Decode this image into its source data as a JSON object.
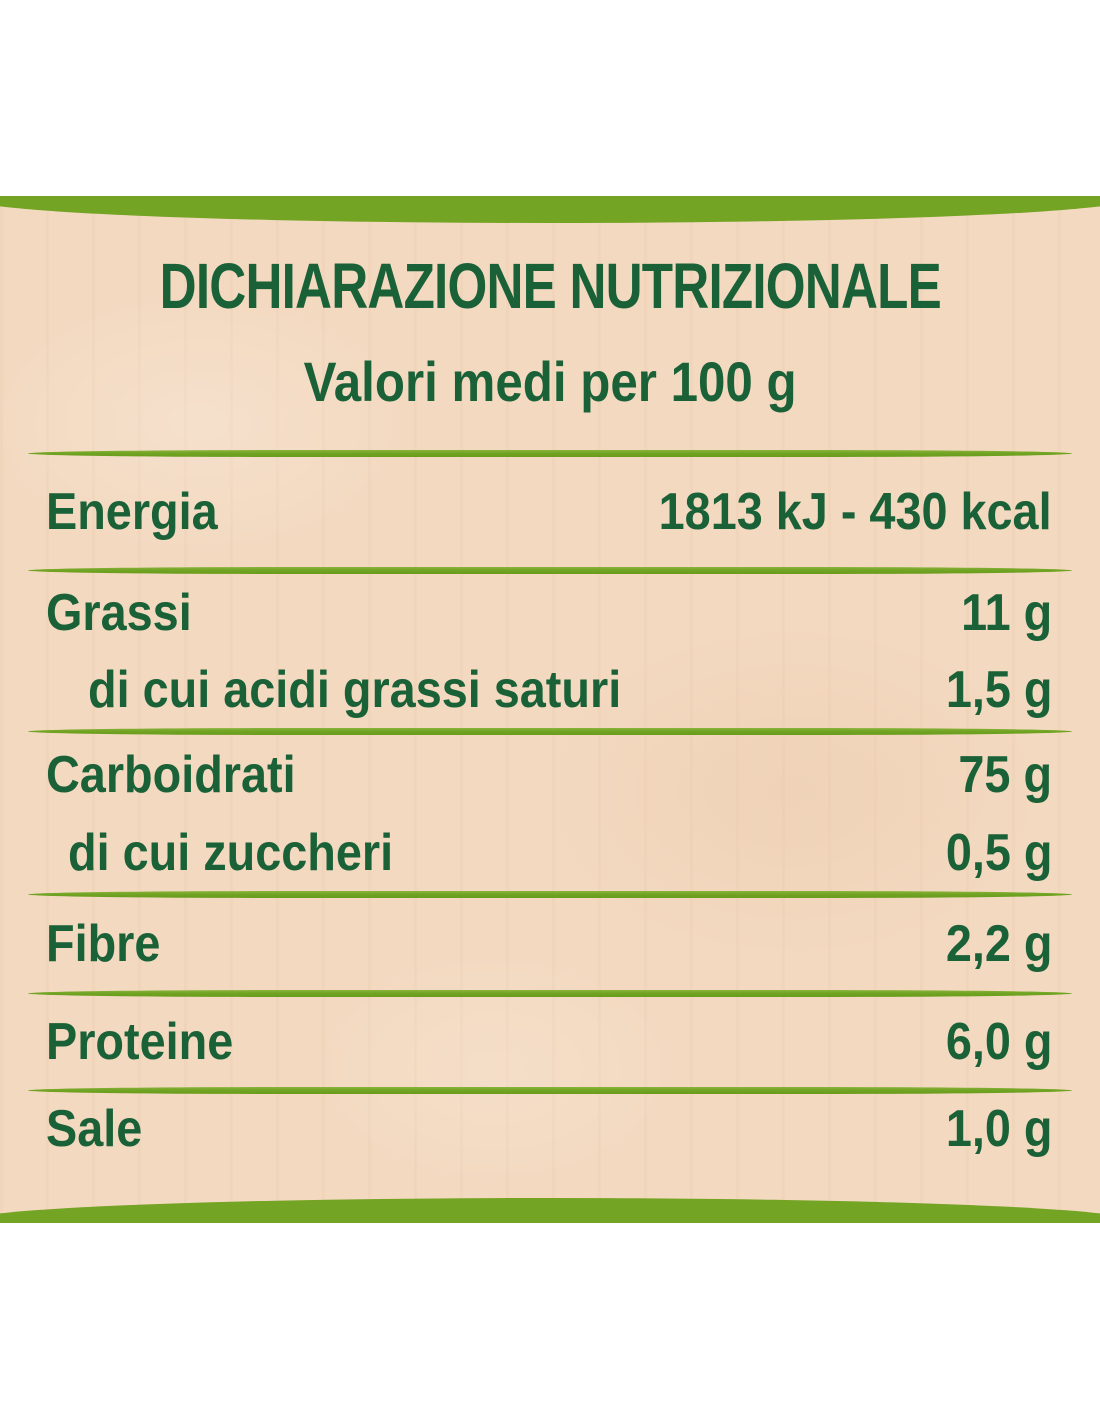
{
  "header": {
    "title": "DICHIARAZIONE NUTRIZIONALE",
    "subtitle": "Valori medi per 100 g"
  },
  "rows": [
    {
      "label": "Energia",
      "value": "1813 kJ - 430 kcal"
    },
    {
      "label": "Grassi",
      "value": "11 g"
    },
    {
      "label": "di cui acidi grassi saturi",
      "value": "1,5 g"
    },
    {
      "label": "Carboidrati",
      "value": "75 g"
    },
    {
      "label": "di cui zuccheri",
      "value": "0,5 g"
    },
    {
      "label": "Fibre",
      "value": "2,2 g"
    },
    {
      "label": "Proteine",
      "value": "6,0 g"
    },
    {
      "label": "Sale",
      "value": "1,0 g"
    }
  ],
  "colors": {
    "text_green": "#1a6138",
    "separator_green": "#72a424",
    "bar_green": "#74a423",
    "paper_beige": "#f3d9c0"
  }
}
